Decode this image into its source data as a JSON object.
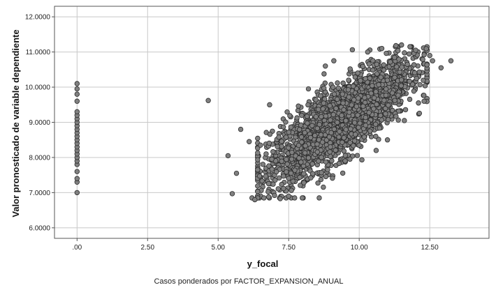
{
  "chart_data": {
    "type": "scatter",
    "xlabel": "y_focal",
    "ylabel": "Valor pronosticado de variable dependiente",
    "footnote": "Casos ponderados por FACTOR_EXPANSION_ANUAL",
    "xlim": [
      -0.8,
      14.6
    ],
    "ylim": [
      5.7,
      12.3
    ],
    "x_ticks": [
      0,
      2.5,
      5,
      7.5,
      10,
      12.5
    ],
    "x_tick_labels": [
      ".00",
      "2.50",
      "5.00",
      "7.50",
      "10.00",
      "12.50"
    ],
    "y_ticks": [
      6,
      7,
      8,
      9,
      10,
      11,
      12
    ],
    "y_tick_labels": [
      "6.0000",
      "7.0000",
      "8.0000",
      "9.0000",
      "10.0000",
      "11.0000",
      "12.0000"
    ],
    "grid": true,
    "colors": {
      "marker_fill": "#808080",
      "marker_stroke": "#2b2b2b",
      "grid": "#c8c8c8",
      "frame": "#555555"
    },
    "points": [
      [
        0,
        7.0
      ],
      [
        0,
        7.3
      ],
      [
        0,
        7.4
      ],
      [
        0,
        7.6
      ],
      [
        0,
        7.8
      ],
      [
        0,
        7.9
      ],
      [
        0,
        8.0
      ],
      [
        0,
        8.1
      ],
      [
        0,
        8.2
      ],
      [
        0,
        8.3
      ],
      [
        0,
        8.4
      ],
      [
        0,
        8.5
      ],
      [
        0,
        8.6
      ],
      [
        0,
        8.7
      ],
      [
        0,
        8.8
      ],
      [
        0,
        8.9
      ],
      [
        0,
        9.0
      ],
      [
        0,
        9.1
      ],
      [
        0,
        9.2
      ],
      [
        0,
        9.3
      ],
      [
        0,
        9.6
      ],
      [
        0,
        9.8
      ],
      [
        0,
        9.95
      ],
      [
        0,
        10.1
      ],
      [
        4.65,
        9.62
      ],
      [
        5.35,
        8.05
      ],
      [
        5.5,
        6.97
      ],
      [
        5.65,
        7.55
      ],
      [
        5.8,
        8.8
      ],
      [
        6.1,
        8.45
      ],
      [
        6.2,
        6.85
      ],
      [
        6.3,
        6.8
      ],
      [
        12.6,
        10.75
      ],
      [
        12.9,
        10.55
      ],
      [
        13.25,
        10.75
      ],
      [
        11.3,
        11.18
      ],
      [
        11.5,
        11.2
      ],
      [
        11.8,
        11.15
      ],
      [
        12.0,
        11.05
      ],
      [
        12.3,
        10.92
      ],
      [
        12.5,
        10.9
      ],
      [
        7.5,
        6.9
      ],
      [
        7.2,
        6.83
      ],
      [
        9.5,
        7.9
      ],
      [
        10.6,
        8.2
      ],
      [
        11.0,
        8.5
      ],
      [
        11.6,
        9.05
      ],
      [
        12.1,
        9.55
      ],
      [
        12.3,
        9.6
      ],
      [
        8.8,
        10.6
      ],
      [
        9.1,
        10.75
      ],
      [
        8.2,
        9.95
      ],
      [
        6.9,
        7.95
      ],
      [
        6.7,
        8.1
      ],
      [
        6.5,
        8.35
      ],
      [
        10.3,
        11.0
      ],
      [
        10.8,
        11.1
      ]
    ]
  }
}
